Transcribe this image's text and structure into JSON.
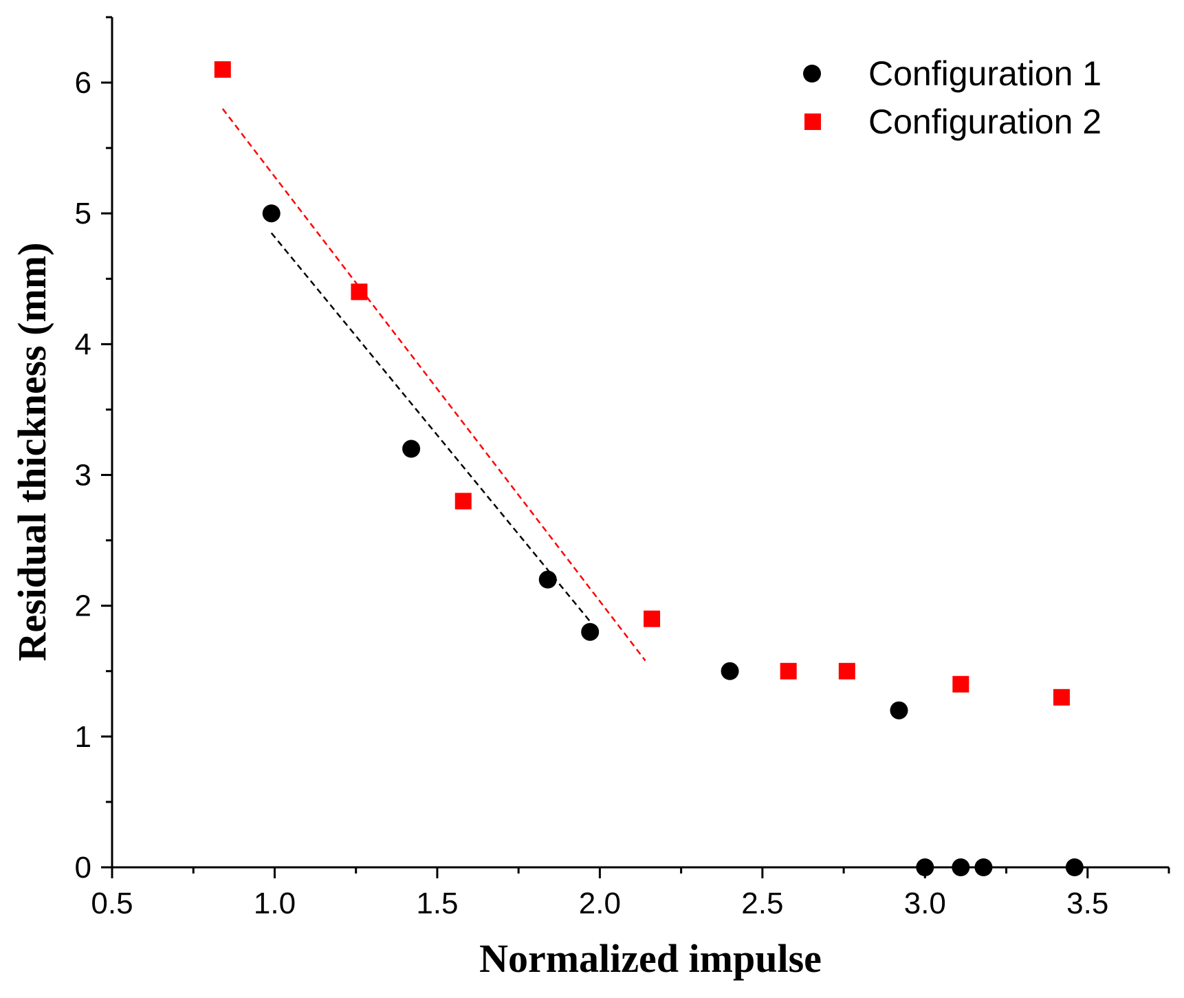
{
  "chart_data": {
    "type": "scatter",
    "title": "",
    "xlabel": "Normalized impulse",
    "ylabel": "Residual thickness (mm)",
    "xlim": [
      0.5,
      3.75
    ],
    "ylim": [
      0,
      6.5
    ],
    "xticks": [
      0.5,
      1.0,
      1.5,
      2.0,
      2.5,
      3.0,
      3.5
    ],
    "xtick_labels": [
      "0.5",
      "1.0",
      "1.5",
      "2.0",
      "2.5",
      "3.0",
      "3.5"
    ],
    "yticks": [
      0,
      1,
      2,
      3,
      4,
      5,
      6
    ],
    "ytick_labels": [
      "0",
      "1",
      "2",
      "3",
      "4",
      "5",
      "6"
    ],
    "grid": false,
    "legend_position": "top-right",
    "series": [
      {
        "name": "Configuration 1",
        "marker": "circle",
        "color": "#000000",
        "x": [
          0.99,
          1.42,
          1.84,
          1.97,
          2.4,
          2.92,
          3.0,
          3.11,
          3.18,
          3.46
        ],
        "y": [
          5.0,
          3.2,
          2.2,
          1.8,
          1.5,
          1.2,
          0.0,
          0.0,
          0.0,
          0.0
        ],
        "fit_line": {
          "style": "dashed",
          "x": [
            0.99,
            1.97
          ],
          "y": [
            4.85,
            1.88
          ]
        }
      },
      {
        "name": "Configuration 2",
        "marker": "square",
        "color": "#ff0000",
        "x": [
          0.84,
          1.26,
          1.58,
          2.16,
          2.58,
          2.76,
          3.11,
          3.42
        ],
        "y": [
          6.1,
          4.4,
          2.8,
          1.9,
          1.5,
          1.5,
          1.4,
          1.3
        ],
        "fit_line": {
          "style": "dashed",
          "x": [
            0.84,
            2.14
          ],
          "y": [
            5.8,
            1.58
          ]
        }
      }
    ]
  }
}
